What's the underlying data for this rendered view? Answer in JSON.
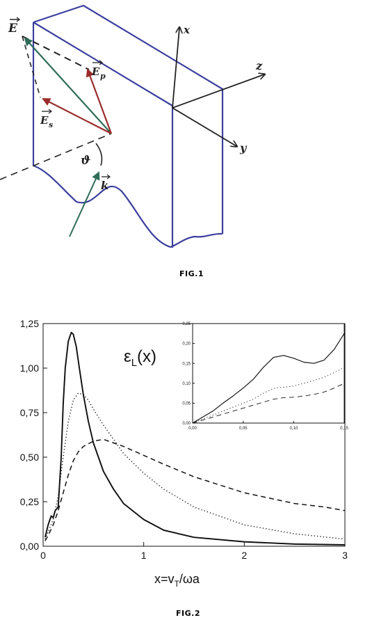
{
  "fig1": {
    "caption": "FIG.1",
    "labels": {
      "E": "E",
      "Ep": "E",
      "Ep_sub": "p",
      "Es": "E",
      "Es_sub": "s",
      "k": "k",
      "theta": "ϑ",
      "x": "x",
      "y": "y",
      "z": "z"
    }
  },
  "fig2": {
    "caption": "FIG.2",
    "curve_label_main": "ε",
    "curve_label_sub": "L",
    "curve_label_arg": "(x)",
    "xlabel_main": "x=v",
    "xlabel_sub": "T",
    "xlabel_rest": "/ωa"
  },
  "chart_data": [
    {
      "type": "line",
      "title": "",
      "annotation": "εL(x)",
      "xlabel": "x=vT/ωa",
      "ylabel": "",
      "xlim": [
        0,
        3
      ],
      "ylim": [
        0,
        1.25
      ],
      "xticks": [
        "0",
        "1",
        "2",
        "3"
      ],
      "yticks": [
        "0,00",
        "0,25",
        "0,50",
        "0,75",
        "1,00",
        "1,25"
      ],
      "series": [
        {
          "style": "solid",
          "x": [
            0.02,
            0.05,
            0.08,
            0.1,
            0.12,
            0.15,
            0.18,
            0.2,
            0.22,
            0.25,
            0.28,
            0.3,
            0.33,
            0.36,
            0.4,
            0.45,
            0.5,
            0.6,
            0.7,
            0.8,
            1.0,
            1.2,
            1.5,
            2.0,
            2.5,
            3.0
          ],
          "y": [
            0.05,
            0.12,
            0.17,
            0.16,
            0.2,
            0.22,
            0.5,
            0.8,
            1.0,
            1.15,
            1.2,
            1.19,
            1.12,
            1.0,
            0.85,
            0.7,
            0.58,
            0.42,
            0.32,
            0.24,
            0.15,
            0.09,
            0.05,
            0.025,
            0.012,
            0.008
          ]
        },
        {
          "style": "dotted",
          "x": [
            0.02,
            0.05,
            0.1,
            0.15,
            0.2,
            0.25,
            0.3,
            0.35,
            0.4,
            0.45,
            0.5,
            0.6,
            0.7,
            0.8,
            1.0,
            1.2,
            1.5,
            2.0,
            2.5,
            3.0
          ],
          "y": [
            0.04,
            0.08,
            0.15,
            0.28,
            0.5,
            0.7,
            0.82,
            0.86,
            0.85,
            0.82,
            0.77,
            0.68,
            0.6,
            0.52,
            0.41,
            0.32,
            0.22,
            0.12,
            0.07,
            0.04
          ]
        },
        {
          "style": "dashed",
          "x": [
            0.02,
            0.05,
            0.1,
            0.15,
            0.2,
            0.25,
            0.3,
            0.35,
            0.4,
            0.5,
            0.6,
            0.7,
            0.8,
            1.0,
            1.2,
            1.5,
            2.0,
            2.5,
            2.8,
            3.0
          ],
          "y": [
            0.03,
            0.06,
            0.12,
            0.2,
            0.3,
            0.4,
            0.48,
            0.53,
            0.56,
            0.59,
            0.6,
            0.58,
            0.56,
            0.51,
            0.46,
            0.39,
            0.3,
            0.24,
            0.22,
            0.2
          ]
        }
      ]
    },
    {
      "type": "line",
      "title": "",
      "xlabel": "",
      "ylabel": "",
      "xlim": [
        0,
        0.15
      ],
      "ylim": [
        0,
        0.25
      ],
      "xticks": [
        "0,00",
        "0,05",
        "0,10",
        "0,15"
      ],
      "yticks": [
        "0,00",
        "0,05",
        "0,10",
        "0,15",
        "0,20",
        "0,25"
      ],
      "series": [
        {
          "style": "solid",
          "x": [
            0,
            0.01,
            0.02,
            0.03,
            0.04,
            0.05,
            0.06,
            0.07,
            0.08,
            0.09,
            0.1,
            0.11,
            0.12,
            0.13,
            0.14,
            0.15
          ],
          "y": [
            0,
            0.015,
            0.03,
            0.05,
            0.068,
            0.088,
            0.11,
            0.14,
            0.165,
            0.17,
            0.163,
            0.153,
            0.15,
            0.158,
            0.185,
            0.225
          ]
        },
        {
          "style": "dotted",
          "x": [
            0,
            0.02,
            0.04,
            0.06,
            0.07,
            0.08,
            0.09,
            0.1,
            0.11,
            0.12,
            0.13,
            0.14,
            0.15
          ],
          "y": [
            0,
            0.02,
            0.04,
            0.06,
            0.075,
            0.087,
            0.09,
            0.093,
            0.1,
            0.107,
            0.115,
            0.127,
            0.14
          ]
        },
        {
          "style": "dashed",
          "x": [
            0,
            0.02,
            0.04,
            0.06,
            0.08,
            0.09,
            0.1,
            0.11,
            0.12,
            0.13,
            0.14,
            0.15
          ],
          "y": [
            0,
            0.015,
            0.03,
            0.045,
            0.06,
            0.064,
            0.065,
            0.068,
            0.072,
            0.078,
            0.088,
            0.1
          ]
        }
      ]
    }
  ]
}
